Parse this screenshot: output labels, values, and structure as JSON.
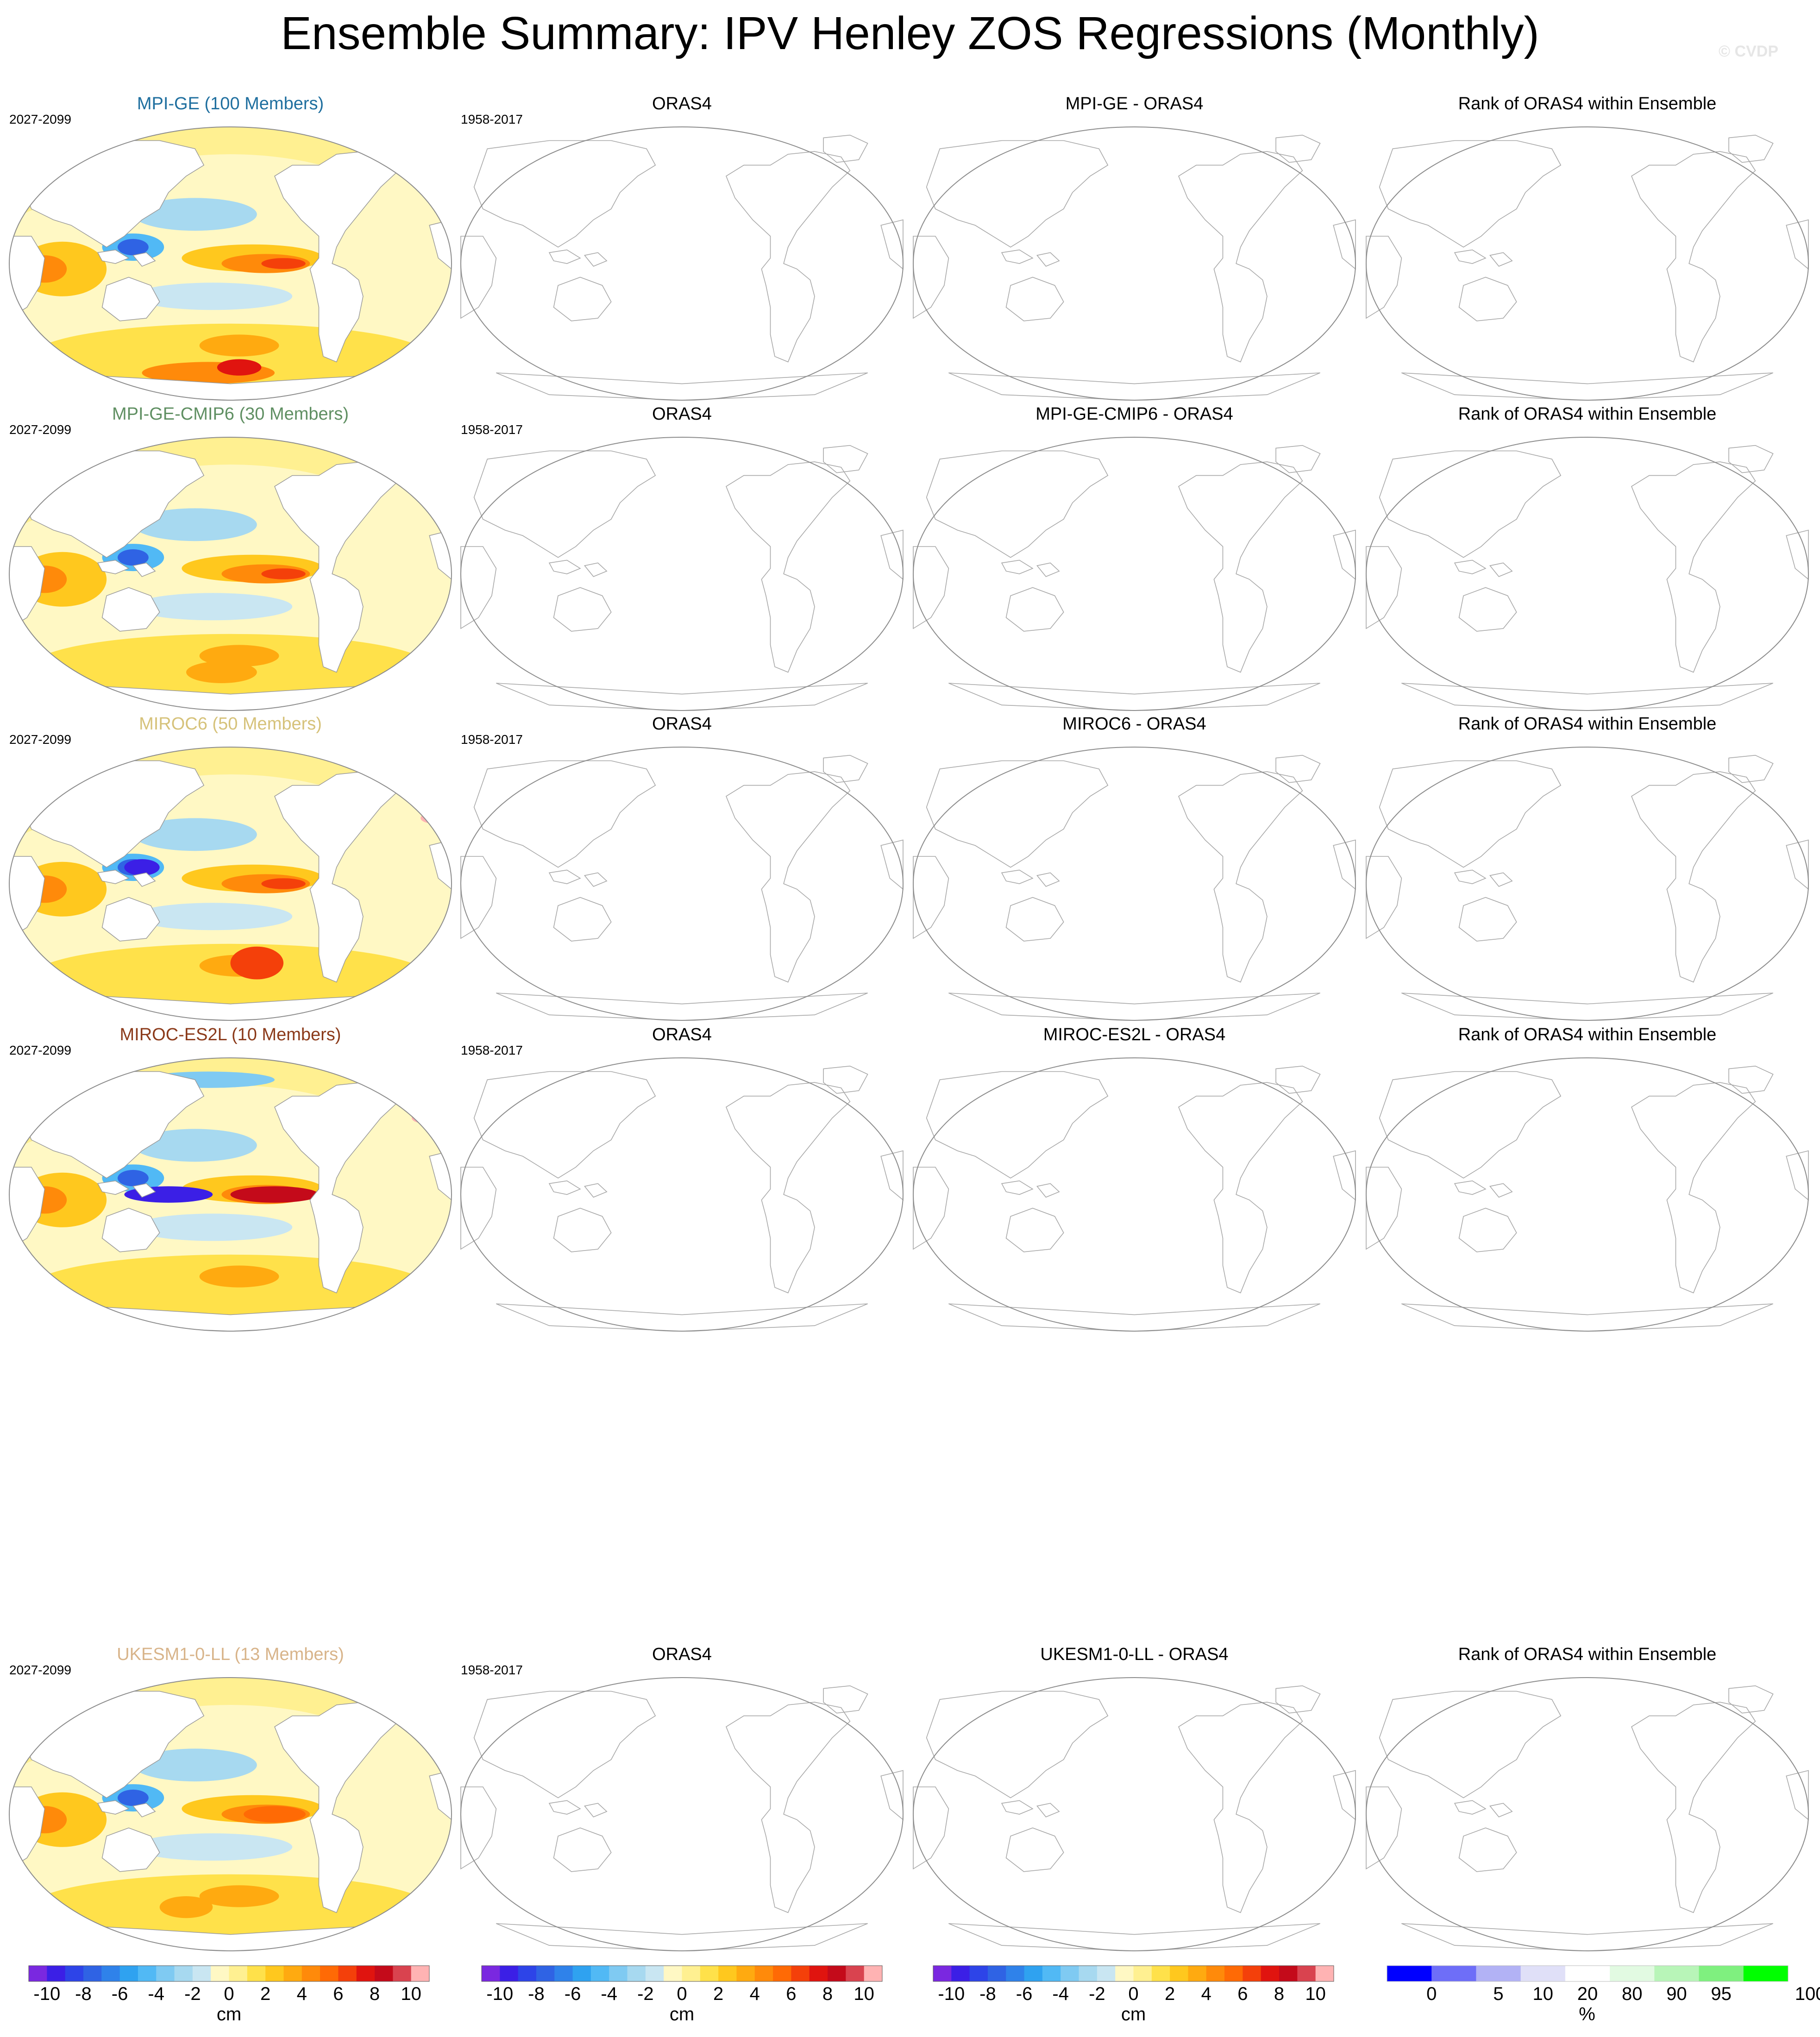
{
  "title": "Ensemble Summary: IPV Henley ZOS Regressions (Monthly)",
  "watermark": "© CVDP",
  "obs_name": "ORAS4",
  "model_period": "2027-2099",
  "obs_period": "1958-2017",
  "rank_title": "Rank of ORAS4 within Ensemble",
  "rows": [
    {
      "model_title": "MPI-GE (100 Members)",
      "color": "#1f6f9f",
      "diff_title": "MPI-GE - ORAS4",
      "pattern": "mpi"
    },
    {
      "model_title": "MPI-GE-CMIP6 (30 Members)",
      "color": "#5f8f62",
      "diff_title": "MPI-GE-CMIP6 - ORAS4",
      "pattern": "cmip6"
    },
    {
      "model_title": "MIROC6 (50 Members)",
      "color": "#d6c27a",
      "diff_title": "MIROC6 - ORAS4",
      "pattern": "miroc6"
    },
    {
      "model_title": "MIROC-ES2L (10 Members)",
      "color": "#8b3a1a",
      "diff_title": "MIROC-ES2L - ORAS4",
      "pattern": "es2l"
    },
    {
      "model_title": "UKESM1-0-LL (13 Members)",
      "color": "#d8b48a",
      "diff_title": "UKESM1-0-LL - ORAS4",
      "pattern": "ukesm"
    }
  ],
  "chart_data": {
    "type": "heatmap",
    "projection": "Robinson (Pacific-centered)",
    "columns": [
      "model ensemble mean",
      "ORAS4",
      "model - ORAS4",
      "rank of ORAS4 within ensemble"
    ],
    "note": "Only the model ensemble-mean panels are filled; ORAS4, difference and rank panels are blank maps.",
    "colorbar_cm": {
      "unit": "cm",
      "levels": [
        -11,
        -10,
        -9,
        -8,
        -7,
        -6,
        -5,
        -4,
        -3,
        -2,
        -1,
        0,
        1,
        2,
        3,
        4,
        5,
        6,
        7,
        8,
        9,
        10
      ],
      "tick_labels": [
        "-10",
        "-8",
        "-6",
        "-4",
        "-2",
        "0",
        "2",
        "4",
        "6",
        "8",
        "10"
      ],
      "colors": [
        "#7a28e0",
        "#3b1fe6",
        "#2d44e8",
        "#2f63e4",
        "#2f82ea",
        "#2fa2f0",
        "#51b9f5",
        "#7fcaf2",
        "#a7d9f0",
        "#c9e6f2",
        "#fff8c4",
        "#fff091",
        "#ffe14a",
        "#ffc81e",
        "#ffaa10",
        "#ff8a0a",
        "#ff6a05",
        "#f4400a",
        "#e0140f",
        "#c40a1a",
        "#d9434f",
        "#ffb3b3"
      ]
    },
    "colorbar_rank": {
      "unit": "%",
      "boundaries": [
        0,
        2.5,
        5,
        10,
        20,
        80,
        90,
        95,
        97.5,
        100
      ],
      "tick_labels": [
        "0",
        "5",
        "10",
        "20",
        "80",
        "90",
        "95",
        "100"
      ],
      "colors": [
        "#0000ff",
        "#6e6ef8",
        "#b2b2f5",
        "#e0e0f8",
        "#ffffff",
        "#e2fae2",
        "#b8f5b8",
        "#7ff07f",
        "#00ff00"
      ]
    }
  }
}
